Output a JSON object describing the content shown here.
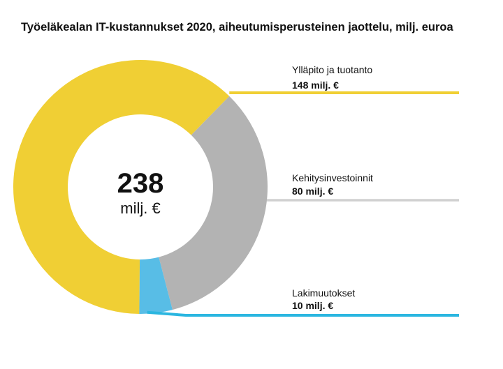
{
  "chart_data": {
    "type": "pie",
    "donut": true,
    "title": "Työeläkealan IT-kustannukset 2020, aiheutumisperusteinen jaottelu, milj. euroa",
    "center_value": "238",
    "center_unit": "milj. €",
    "total": 238,
    "slices": [
      {
        "label": "Ylläpito ja tuotanto",
        "value": 148,
        "value_label": "148 milj. €",
        "color": "#f0cf34",
        "leader_color": "#f0cf34"
      },
      {
        "label": "Kehitysinvestoinnit",
        "value": 80,
        "value_label": "80 milj. €",
        "color": "#b3b3b3",
        "leader_color": "#d0d0d0"
      },
      {
        "label": "Lakimuutokset",
        "value": 10,
        "value_label": "10 milj. €",
        "color": "#58bde6",
        "leader_color": "#2bb6e0"
      }
    ],
    "legend": "none (direct labels with leader lines on the right)"
  }
}
